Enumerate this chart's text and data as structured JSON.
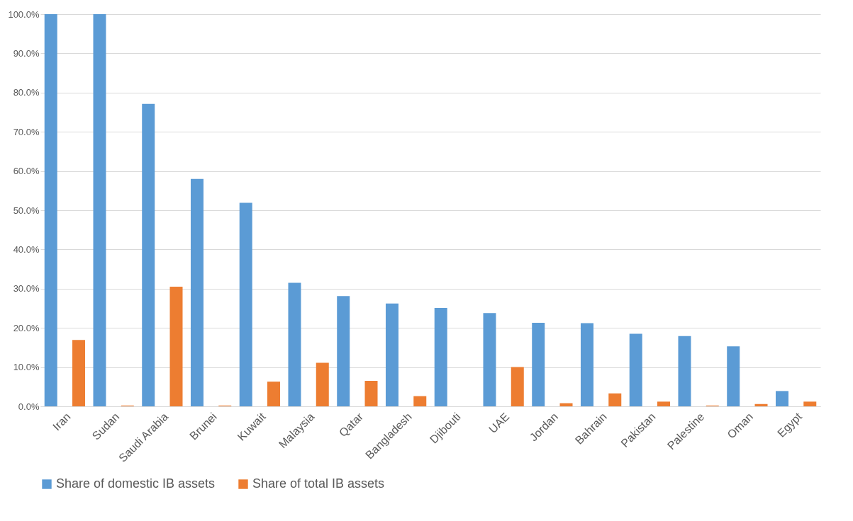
{
  "chart_data": {
    "type": "bar",
    "categories": [
      "Iran",
      "Sudan",
      "Saudi Arabia",
      "Brunei",
      "Kuwait",
      "Malaysia",
      "Qatar",
      "Bangladesh",
      "Djibouti",
      "UAE",
      "Jordan",
      "Bahrain",
      "Pakistan",
      "Palestine",
      "Oman",
      "Egypt"
    ],
    "series": [
      {
        "name": "Share of domestic IB assets",
        "color": "#5b9bd5",
        "values": [
          100,
          100,
          77.1,
          58.0,
          51.9,
          31.5,
          28.1,
          26.2,
          25.1,
          23.8,
          21.3,
          21.2,
          18.5,
          17.9,
          15.3,
          3.9
        ]
      },
      {
        "name": "Share of total IB assets",
        "color": "#ed7d31",
        "values": [
          16.9,
          0.2,
          30.5,
          0.2,
          6.3,
          11.1,
          6.5,
          2.6,
          0,
          10.0,
          0.8,
          3.3,
          1.2,
          0.2,
          0.6,
          1.2
        ]
      }
    ],
    "ylim": [
      0,
      100
    ],
    "yticks": [
      {
        "value": 0,
        "label": "0.0%"
      },
      {
        "value": 10,
        "label": "10.0%"
      },
      {
        "value": 20,
        "label": "20.0%"
      },
      {
        "value": 30,
        "label": "30.0%"
      },
      {
        "value": 40,
        "label": "40.0%"
      },
      {
        "value": 50,
        "label": "50.0%"
      },
      {
        "value": 60,
        "label": "60.0%"
      },
      {
        "value": 70,
        "label": "70.0%"
      },
      {
        "value": 80,
        "label": "80.0%"
      },
      {
        "value": 90,
        "label": "90.0%"
      },
      {
        "value": 100,
        "label": "100.0%"
      }
    ],
    "grid": "y",
    "legend": "bottom"
  }
}
